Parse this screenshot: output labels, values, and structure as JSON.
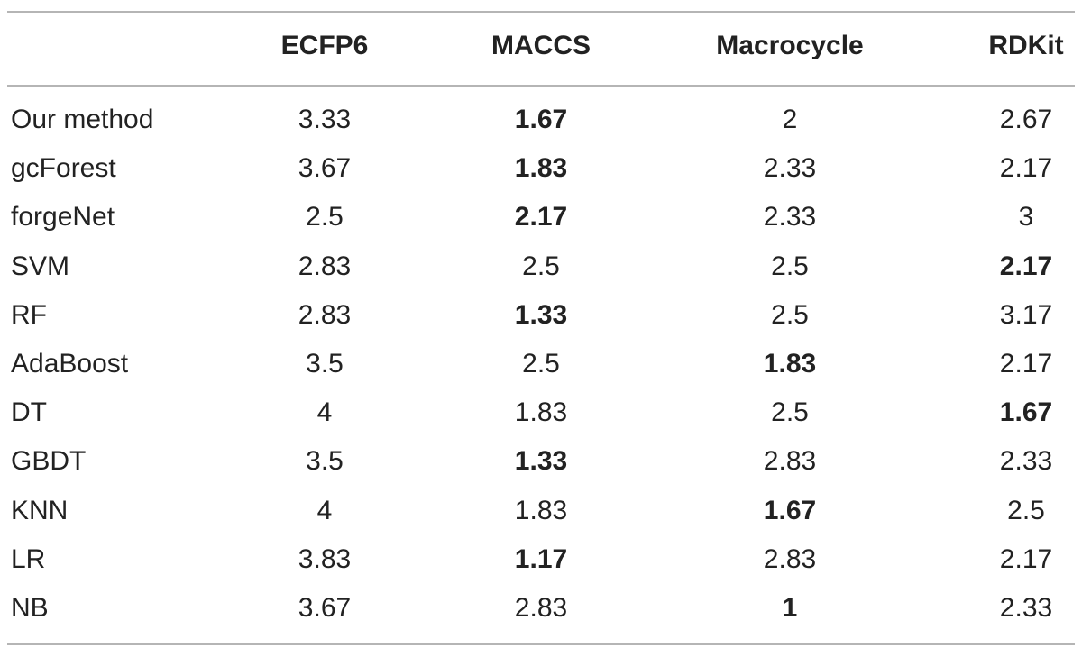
{
  "table": {
    "header": [
      "ECFP6",
      "MACCS",
      "Macrocycle",
      "RDKit"
    ],
    "rows": [
      {
        "name": "Our method",
        "cells": [
          {
            "text": "3.33",
            "bold": false
          },
          {
            "text": "1.67",
            "bold": true
          },
          {
            "text": "2",
            "bold": false
          },
          {
            "text": "2.67",
            "bold": false
          }
        ]
      },
      {
        "name": "gcForest",
        "cells": [
          {
            "text": "3.67",
            "bold": false
          },
          {
            "text": "1.83",
            "bold": true
          },
          {
            "text": "2.33",
            "bold": false
          },
          {
            "text": "2.17",
            "bold": false
          }
        ]
      },
      {
        "name": "forgeNet",
        "cells": [
          {
            "text": "2.5",
            "bold": false
          },
          {
            "text": "2.17",
            "bold": true
          },
          {
            "text": "2.33",
            "bold": false
          },
          {
            "text": "3",
            "bold": false
          }
        ]
      },
      {
        "name": "SVM",
        "cells": [
          {
            "text": "2.83",
            "bold": false
          },
          {
            "text": "2.5",
            "bold": false
          },
          {
            "text": "2.5",
            "bold": false
          },
          {
            "text": "2.17",
            "bold": true
          }
        ]
      },
      {
        "name": "RF",
        "cells": [
          {
            "text": "2.83",
            "bold": false
          },
          {
            "text": "1.33",
            "bold": true
          },
          {
            "text": "2.5",
            "bold": false
          },
          {
            "text": "3.17",
            "bold": false
          }
        ]
      },
      {
        "name": "AdaBoost",
        "cells": [
          {
            "text": "3.5",
            "bold": false
          },
          {
            "text": "2.5",
            "bold": false
          },
          {
            "text": "1.83",
            "bold": true
          },
          {
            "text": "2.17",
            "bold": false
          }
        ]
      },
      {
        "name": "DT",
        "cells": [
          {
            "text": "4",
            "bold": false
          },
          {
            "text": "1.83",
            "bold": false
          },
          {
            "text": "2.5",
            "bold": false
          },
          {
            "text": "1.67",
            "bold": true
          }
        ]
      },
      {
        "name": "GBDT",
        "cells": [
          {
            "text": "3.5",
            "bold": false
          },
          {
            "text": "1.33",
            "bold": true
          },
          {
            "text": "2.83",
            "bold": false
          },
          {
            "text": "2.33",
            "bold": false
          }
        ]
      },
      {
        "name": "KNN",
        "cells": [
          {
            "text": "4",
            "bold": false
          },
          {
            "text": "1.83",
            "bold": false
          },
          {
            "text": "1.67",
            "bold": true
          },
          {
            "text": "2.5",
            "bold": false
          }
        ]
      },
      {
        "name": "LR",
        "cells": [
          {
            "text": "3.83",
            "bold": false
          },
          {
            "text": "1.17",
            "bold": true
          },
          {
            "text": "2.83",
            "bold": false
          },
          {
            "text": "2.17",
            "bold": false
          }
        ]
      },
      {
        "name": "NB",
        "cells": [
          {
            "text": "3.67",
            "bold": false
          },
          {
            "text": "2.83",
            "bold": false
          },
          {
            "text": "1",
            "bold": true
          },
          {
            "text": "2.33",
            "bold": false
          }
        ]
      }
    ]
  }
}
